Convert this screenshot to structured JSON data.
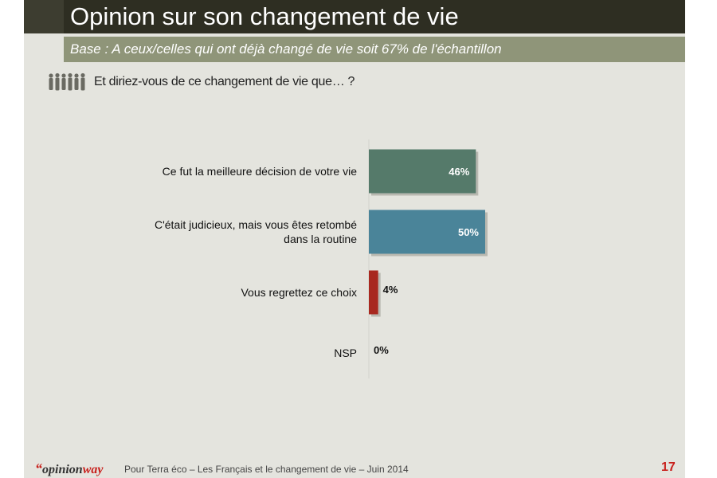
{
  "slide": {
    "title": "Opinion sur son changement de vie",
    "base": "Base : A ceux/celles qui ont déjà changé de vie soit 67% de l'échantillon",
    "question": "Et diriez-vous de ce changement de vie que… ?"
  },
  "footer": {
    "logo_quote": "“",
    "logo_opinion": "opinion",
    "logo_way": "way",
    "text": "Pour Terra éco – Les Français et le changement de vie – Juin 2014",
    "page_number": "17"
  },
  "chart_data": {
    "type": "bar",
    "orientation": "horizontal",
    "categories": [
      "Ce fut la meilleure décision de votre vie",
      "C'était judicieux, mais vous êtes retombé dans la routine",
      "Vous regrettez ce choix",
      "NSP"
    ],
    "category_lines": [
      [
        "Ce fut la meilleure décision de votre vie"
      ],
      [
        "C'était judicieux, mais vous êtes retombé",
        "dans la routine"
      ],
      [
        "Vous regrettez ce choix"
      ],
      [
        "NSP"
      ]
    ],
    "values": [
      46,
      50,
      4,
      0
    ],
    "value_labels": [
      "46%",
      "50%",
      "4%",
      "0%"
    ],
    "colors": [
      "#557a6a",
      "#4a8499",
      "#a8281f",
      "#bbbbbb"
    ],
    "xlim": [
      0,
      100
    ],
    "grid": false,
    "legend": false
  }
}
